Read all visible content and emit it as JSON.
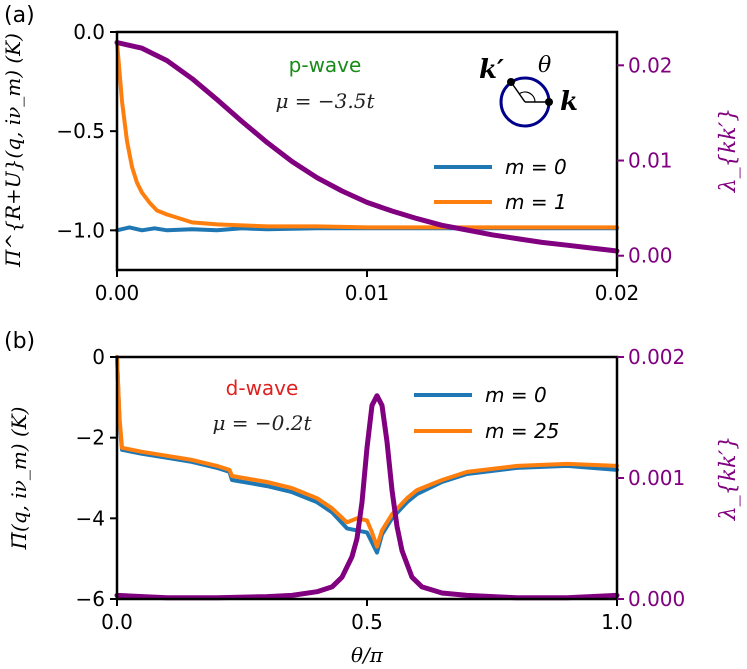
{
  "colors": {
    "m0": "#1f77b4",
    "m1": "#ff7f0e",
    "lambda": "#800080",
    "pwave": "#1a8a1a",
    "dwave": "#e02020",
    "circle": "#00008b"
  },
  "chart_data": [
    {
      "type": "line",
      "panel_label": "(a)",
      "annotation_wave": "p-wave",
      "annotation_mu": "μ = −3.5t",
      "inset": {
        "k_prime": "k′",
        "theta": "θ",
        "k": "k"
      },
      "ylabel": "Π^{R+U}(q, iν_m) (K)",
      "ylabel_right": "λ_{kk′}",
      "xlim": [
        0,
        0.02
      ],
      "ylim": [
        -1.2,
        0
      ],
      "ylim_right": [
        -0.0015,
        0.0235
      ],
      "xticks": [
        "0.00",
        "0.01",
        "0.02"
      ],
      "xtick_values": [
        0,
        0.01,
        0.02
      ],
      "yticks": [
        "−1.0",
        "−0.5",
        "0.0"
      ],
      "ytick_values": [
        -1.0,
        -0.5,
        0.0
      ],
      "yticks_right": [
        "0.00",
        "0.01",
        "0.02"
      ],
      "ytick_right_values": [
        0,
        0.01,
        0.02
      ],
      "series": [
        {
          "name": "m = 0",
          "axis": "left",
          "color_key": "m0",
          "x": [
            0,
            0.0005,
            0.001,
            0.0015,
            0.002,
            0.003,
            0.004,
            0.005,
            0.006,
            0.008,
            0.01,
            0.012,
            0.014,
            0.016,
            0.018,
            0.02
          ],
          "y": [
            -1.0,
            -0.985,
            -1.0,
            -0.99,
            -1.0,
            -0.995,
            -1.0,
            -0.99,
            -0.995,
            -0.99,
            -0.99,
            -0.99,
            -0.99,
            -0.99,
            -0.99,
            -0.99
          ]
        },
        {
          "name": "m = 1",
          "axis": "left",
          "color_key": "m1",
          "x": [
            0,
            0.0001,
            0.0002,
            0.0004,
            0.0006,
            0.0008,
            0.001,
            0.0013,
            0.0016,
            0.002,
            0.0025,
            0.003,
            0.004,
            0.005,
            0.006,
            0.008,
            0.01,
            0.012,
            0.015,
            0.02
          ],
          "y": [
            -0.05,
            -0.2,
            -0.35,
            -0.55,
            -0.68,
            -0.76,
            -0.81,
            -0.86,
            -0.9,
            -0.92,
            -0.94,
            -0.96,
            -0.97,
            -0.975,
            -0.98,
            -0.98,
            -0.985,
            -0.985,
            -0.985,
            -0.985
          ]
        },
        {
          "name": "λ",
          "axis": "right",
          "color_key": "lambda",
          "x": [
            0,
            0.001,
            0.002,
            0.003,
            0.004,
            0.005,
            0.006,
            0.007,
            0.008,
            0.009,
            0.01,
            0.011,
            0.012,
            0.013,
            0.014,
            0.015,
            0.016,
            0.017,
            0.018,
            0.019,
            0.02
          ],
          "y": [
            0.0224,
            0.0218,
            0.0205,
            0.0186,
            0.0164,
            0.0141,
            0.0119,
            0.0099,
            0.0082,
            0.0068,
            0.0056,
            0.0047,
            0.0039,
            0.0032,
            0.0027,
            0.0022,
            0.0018,
            0.0014,
            0.0011,
            0.0008,
            0.0005
          ]
        }
      ],
      "legend_entries": [
        {
          "label": "m = 0",
          "color_key": "m0"
        },
        {
          "label": "m = 1",
          "color_key": "m1"
        }
      ]
    },
    {
      "type": "line",
      "panel_label": "(b)",
      "annotation_wave": "d-wave",
      "annotation_mu": "μ = −0.2t",
      "ylabel": "Π̄(q, iν_m) (K)",
      "ylabel_right": "λ_{kk′}",
      "xlabel": "θ/π",
      "xlim": [
        0,
        1
      ],
      "ylim": [
        -6,
        0
      ],
      "ylim_right": [
        0,
        0.002
      ],
      "xticks": [
        "0.0",
        "0.5",
        "1.0"
      ],
      "xtick_values": [
        0,
        0.5,
        1.0
      ],
      "yticks": [
        "−6",
        "−4",
        "−2",
        "0"
      ],
      "ytick_values": [
        -6,
        -4,
        -2,
        0
      ],
      "yticks_right": [
        "0.000",
        "0.001",
        "0.002"
      ],
      "ytick_right_values": [
        0,
        0.001,
        0.002
      ],
      "series": [
        {
          "name": "m = 0",
          "axis": "left",
          "color_key": "m0",
          "x": [
            0,
            0.005,
            0.01,
            0.05,
            0.1,
            0.15,
            0.2,
            0.225,
            0.23,
            0.3,
            0.35,
            0.4,
            0.43,
            0.46,
            0.48,
            0.5,
            0.51,
            0.52,
            0.53,
            0.55,
            0.58,
            0.6,
            0.65,
            0.7,
            0.8,
            0.9,
            1.0
          ],
          "y": [
            0,
            -1.6,
            -2.3,
            -2.4,
            -2.5,
            -2.6,
            -2.75,
            -2.85,
            -3.05,
            -3.2,
            -3.35,
            -3.6,
            -3.85,
            -4.25,
            -4.3,
            -4.35,
            -4.6,
            -4.85,
            -4.4,
            -4.0,
            -3.6,
            -3.4,
            -3.1,
            -2.9,
            -2.75,
            -2.7,
            -2.8
          ]
        },
        {
          "name": "m = 25",
          "axis": "left",
          "color_key": "m1",
          "x": [
            0,
            0.005,
            0.01,
            0.05,
            0.1,
            0.15,
            0.2,
            0.225,
            0.23,
            0.3,
            0.35,
            0.4,
            0.43,
            0.46,
            0.48,
            0.5,
            0.51,
            0.52,
            0.53,
            0.55,
            0.58,
            0.6,
            0.65,
            0.7,
            0.8,
            0.9,
            1.0
          ],
          "y": [
            0,
            -1.5,
            -2.25,
            -2.35,
            -2.45,
            -2.55,
            -2.7,
            -2.8,
            -2.95,
            -3.1,
            -3.25,
            -3.5,
            -3.75,
            -4.1,
            -4.0,
            -4.05,
            -4.35,
            -4.7,
            -4.3,
            -3.9,
            -3.5,
            -3.3,
            -3.05,
            -2.85,
            -2.7,
            -2.65,
            -2.7
          ]
        },
        {
          "name": "λ",
          "axis": "right",
          "color_key": "lambda",
          "x": [
            0,
            0.1,
            0.2,
            0.3,
            0.35,
            0.4,
            0.43,
            0.45,
            0.47,
            0.48,
            0.49,
            0.5,
            0.51,
            0.52,
            0.53,
            0.54,
            0.55,
            0.56,
            0.57,
            0.59,
            0.61,
            0.65,
            0.7,
            0.8,
            0.9,
            1.0
          ],
          "y": [
            3e-05,
            1e-05,
            1e-05,
            2e-05,
            3e-05,
            6e-05,
            0.0001,
            0.00018,
            0.00035,
            0.0005,
            0.0008,
            0.00125,
            0.0016,
            0.00168,
            0.0016,
            0.0013,
            0.0009,
            0.0006,
            0.0004,
            0.00018,
            0.0001,
            5e-05,
            3e-05,
            1e-05,
            1e-05,
            3e-05
          ]
        }
      ],
      "legend_entries": [
        {
          "label": "m = 0",
          "color_key": "m0"
        },
        {
          "label": "m = 25",
          "color_key": "m1"
        }
      ]
    }
  ]
}
